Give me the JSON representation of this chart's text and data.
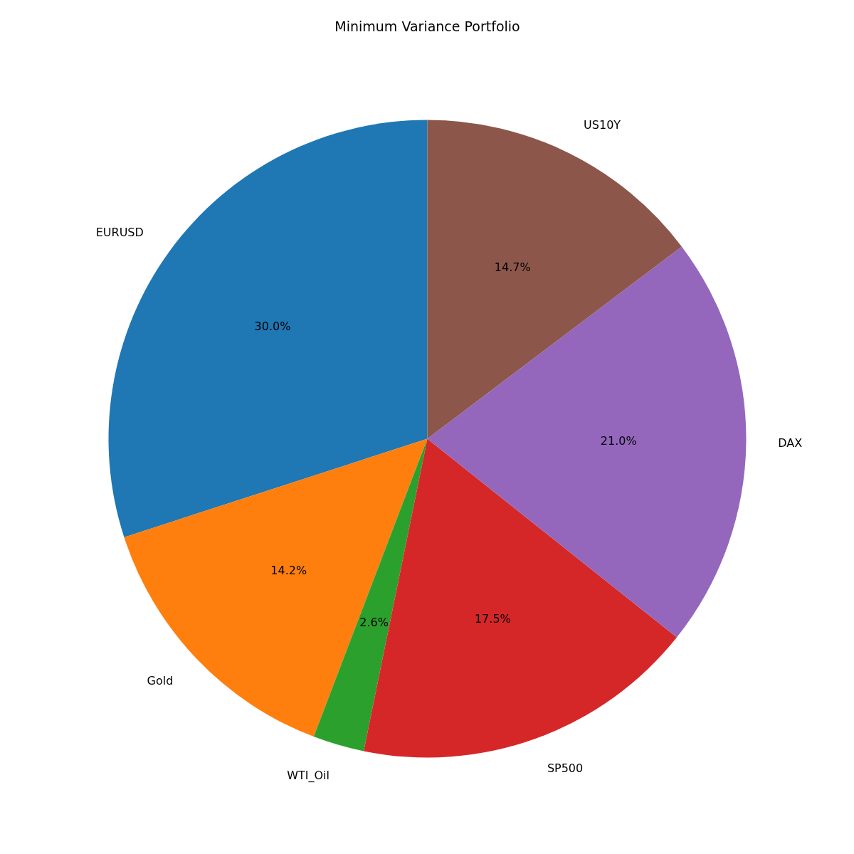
{
  "chart_data": {
    "type": "pie",
    "title": "Minimum Variance Portfolio",
    "categories": [
      "EURUSD",
      "Gold",
      "WTI_Oil",
      "SP500",
      "DAX",
      "US10Y"
    ],
    "values": [
      30.0,
      14.2,
      2.6,
      17.5,
      21.0,
      14.7
    ],
    "colors": [
      "#1f77b4",
      "#ff7f0e",
      "#2ca02c",
      "#d62728",
      "#9467bd",
      "#8c564b"
    ],
    "value_labels": [
      "30.0%",
      "14.2%",
      "2.6%",
      "17.5%",
      "21.0%",
      "14.7%"
    ]
  }
}
